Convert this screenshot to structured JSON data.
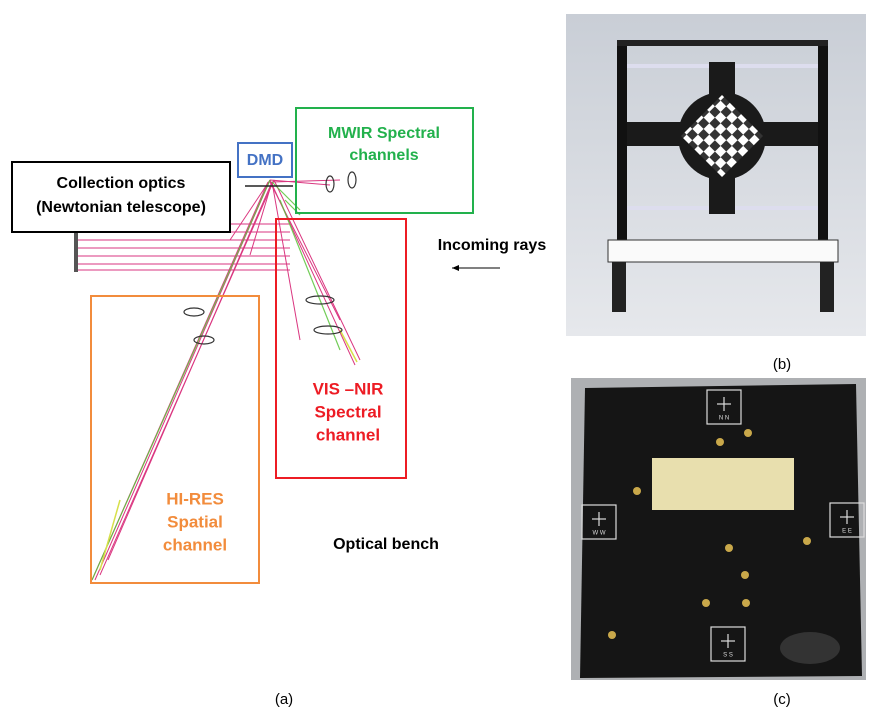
{
  "panel_a": {
    "collection_optics": [
      "Collection optics",
      "(Newtonian telescope)"
    ],
    "dmd": "DMD",
    "mwir": [
      "MWIR Spectral",
      "channels"
    ],
    "incoming_rays": "Incoming rays",
    "vis_nir": [
      "VIS –NIR",
      "Spectral",
      "channel"
    ],
    "hi_res": [
      "HI-RES",
      "Spatial",
      "channel"
    ],
    "optical_bench": "Optical bench",
    "caption": "(a)"
  },
  "panel_b": {
    "caption": "(b)"
  },
  "panel_c": {
    "marks": [
      "N N",
      "W W",
      "E E",
      "S S"
    ],
    "caption": "(c)"
  }
}
